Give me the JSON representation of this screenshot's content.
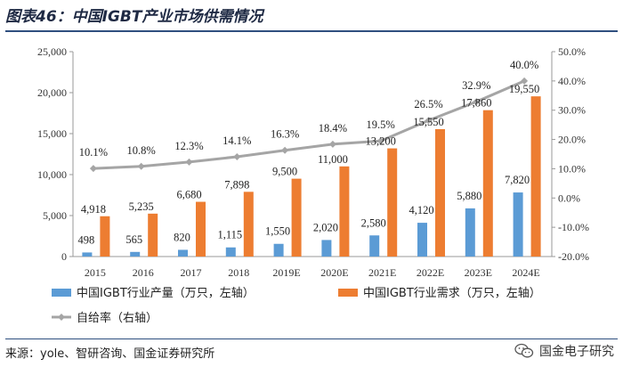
{
  "header": {
    "title": "图表46：中国IGBT产业市场供需情况"
  },
  "footer": {
    "source": "来源：yole、智研咨询、国金证券研究所",
    "watermark": "国金电子研究"
  },
  "colors": {
    "production": "#5b9bd5",
    "demand": "#ed7d31",
    "ratio": "#a5a5a5",
    "title": "#1f2a44",
    "rule": "#2f4f7f"
  },
  "chart_data": {
    "type": "bar",
    "categories": [
      "2015",
      "2016",
      "2017",
      "2018",
      "2019E",
      "2020E",
      "2021E",
      "2022E",
      "2023E",
      "2024E"
    ],
    "series": [
      {
        "name": "中国IGBT行业产量（万只，左轴）",
        "type": "bar",
        "axis": "left",
        "values": [
          498,
          565,
          820,
          1115,
          1550,
          2020,
          2580,
          4120,
          5880,
          7820
        ],
        "labels": [
          "498",
          "565",
          "820",
          "1,115",
          "1,550",
          "2,020",
          "2,580",
          "4,120",
          "5,880",
          "7,820"
        ]
      },
      {
        "name": "中国IGBT行业需求（万只，左轴）",
        "type": "bar",
        "axis": "left",
        "values": [
          4918,
          5235,
          6680,
          7898,
          9500,
          11000,
          13200,
          15550,
          17860,
          19550
        ],
        "labels": [
          "4,918",
          "5,235",
          "6,680",
          "7,898",
          "9,500",
          "11,000",
          "13,200",
          "15,550",
          "17,860",
          "19,550"
        ]
      },
      {
        "name": "自给率（右轴）",
        "type": "line",
        "axis": "right",
        "values": [
          10.1,
          10.8,
          12.3,
          14.1,
          16.3,
          18.4,
          19.5,
          26.5,
          32.9,
          40.0
        ],
        "labels": [
          "10.1%",
          "10.8%",
          "12.3%",
          "14.1%",
          "16.3%",
          "18.4%",
          "19.5%",
          "26.5%",
          "32.9%",
          "40.0%"
        ]
      }
    ],
    "y_left": {
      "min": 0,
      "max": 25000,
      "ticks": [
        "0",
        "5,000",
        "10,000",
        "15,000",
        "20,000",
        "25,000"
      ]
    },
    "y_right": {
      "min": -20,
      "max": 50,
      "ticks": [
        "-20.0%",
        "-10.0%",
        "0.0%",
        "10.0%",
        "20.0%",
        "30.0%",
        "40.0%",
        "50.0%"
      ]
    },
    "legend_position": "bottom",
    "grid": false
  }
}
